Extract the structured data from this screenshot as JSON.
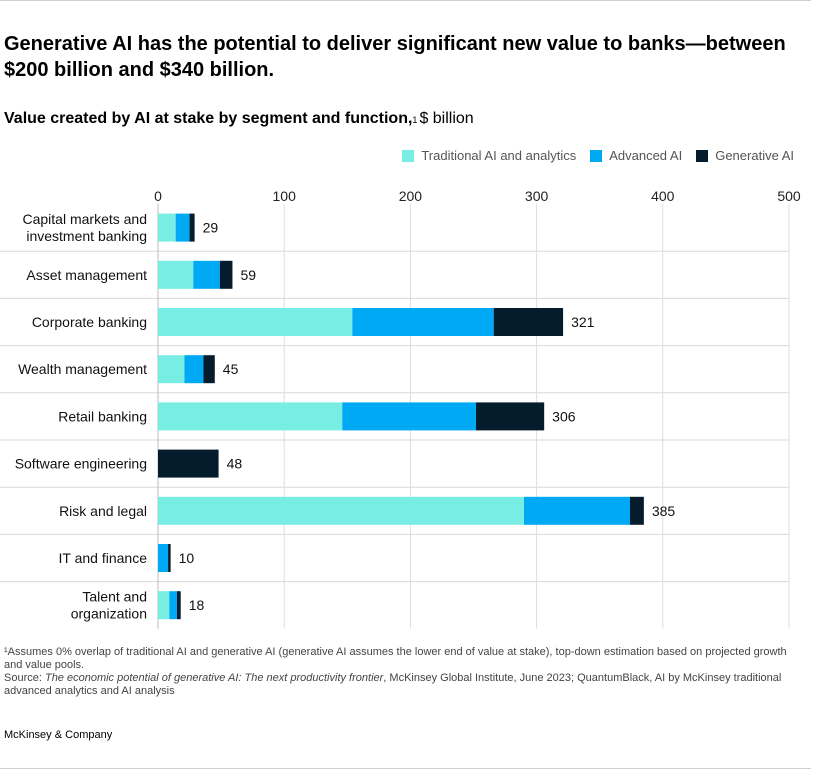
{
  "header": {
    "title": "Generative AI has the potential to deliver significant new value to banks—between $200 billion and $340 billion.",
    "subtitle_bold": "Value created by AI at stake by segment and function,",
    "subtitle_sup": "1",
    "subtitle_rest": "$ billion"
  },
  "legend": [
    {
      "label": "Traditional AI and analytics",
      "color": "#77ede3"
    },
    {
      "label": "Advanced AI",
      "color": "#00a9f4"
    },
    {
      "label": "Generative  AI",
      "color": "#051c2c"
    }
  ],
  "chart_data": {
    "type": "bar",
    "orientation": "horizontal",
    "stacked": true,
    "title": "Value created by AI at stake by segment and function, $ billion",
    "xlim": [
      0,
      500
    ],
    "x_ticks": [
      "0",
      "100",
      "200",
      "300",
      "400",
      "500"
    ],
    "grid": true,
    "legend_position": "top-right",
    "categories": [
      [
        "Capital markets and",
        "investment banking"
      ],
      [
        "Asset management"
      ],
      [
        "Corporate banking"
      ],
      [
        "Wealth management"
      ],
      [
        "Retail banking"
      ],
      [
        "Software engineering"
      ],
      [
        "Risk and legal"
      ],
      [
        "IT and finance"
      ],
      [
        "Talent and",
        "organization"
      ]
    ],
    "series": [
      {
        "name": "Traditional AI and analytics",
        "color": "#77ede3",
        "values": [
          14,
          28,
          154,
          21,
          146,
          0,
          290,
          0,
          9
        ]
      },
      {
        "name": "Advanced AI",
        "color": "#00a9f4",
        "values": [
          11,
          21,
          112,
          15,
          106,
          0,
          84,
          8,
          6
        ]
      },
      {
        "name": "Generative  AI",
        "color": "#051c2c",
        "values": [
          4,
          10,
          55,
          9,
          54,
          48,
          11,
          2,
          3
        ]
      }
    ],
    "totals": [
      "29",
      "59",
      "321",
      "45",
      "306",
      "48",
      "385",
      "10",
      "18"
    ]
  },
  "footnote": {
    "note": "¹Assumes 0% overlap of traditional AI and generative AI (generative AI assumes the lower end of value at stake), top-down estimation based on projected growth and value pools.",
    "source_prefix": "Source: ",
    "source_title": "The economic potential of generative AI: The next productivity frontier",
    "source_rest": ", McKinsey Global Institute, June 2023; QuantumBlack, AI by McKinsey traditional advanced analytics and AI analysis"
  },
  "brand": "McKinsey & Company"
}
